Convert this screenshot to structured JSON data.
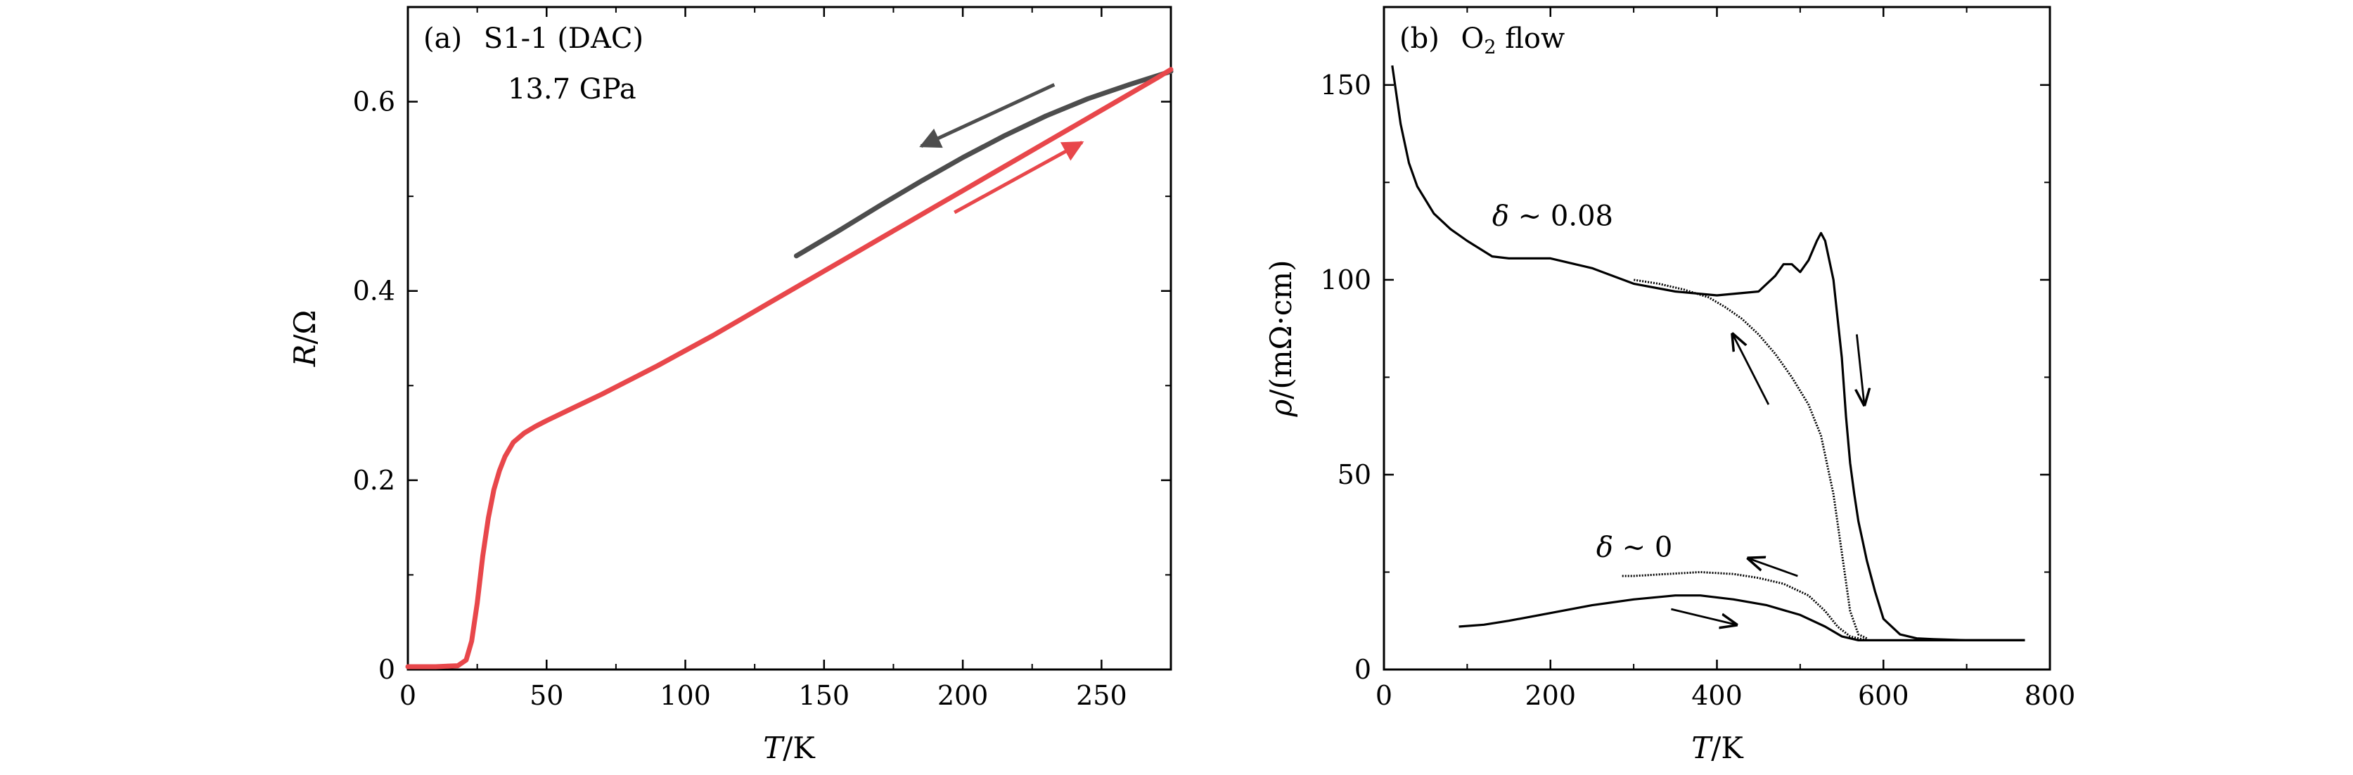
{
  "colors": {
    "cooling": "#4d4d4d",
    "warming": "#e8474b",
    "trace": "#000000",
    "frame": "#000000"
  },
  "chart_data": [
    {
      "panel": "a",
      "type": "line",
      "label_prefix": "(a)",
      "title": "S1-1 (DAC)",
      "subtitle": "13.7 GPa",
      "xlabel_var": "T",
      "xlabel_unit": "/K",
      "ylabel_var": "R",
      "ylabel_unit": "/Ω",
      "xlim": [
        0,
        275
      ],
      "ylim": [
        0,
        0.7
      ],
      "xticks": [
        0,
        50,
        100,
        150,
        200,
        250
      ],
      "yticks": [
        0,
        0.2,
        0.4,
        0.6
      ],
      "ytick_labels": [
        "0",
        "0.2",
        "0.4",
        "0.6"
      ],
      "series": [
        {
          "name": "cooling",
          "color": "#4d4d4d",
          "x": [
            275,
            260,
            245,
            230,
            215,
            200,
            185,
            170,
            155,
            140
          ],
          "y": [
            0.632,
            0.618,
            0.603,
            0.585,
            0.564,
            0.541,
            0.516,
            0.49,
            0.463,
            0.437
          ]
        },
        {
          "name": "warming",
          "color": "#e8474b",
          "x": [
            0,
            10,
            18,
            21,
            23,
            25,
            27,
            29,
            31,
            33,
            35,
            38,
            42,
            46,
            50,
            60,
            70,
            80,
            90,
            100,
            110,
            120,
            130,
            140,
            150,
            160,
            170,
            180,
            190,
            200,
            210,
            220,
            230,
            240,
            250,
            260,
            270,
            275
          ],
          "y": [
            0.003,
            0.003,
            0.004,
            0.01,
            0.03,
            0.07,
            0.12,
            0.16,
            0.19,
            0.21,
            0.225,
            0.24,
            0.25,
            0.257,
            0.263,
            0.277,
            0.291,
            0.306,
            0.321,
            0.337,
            0.353,
            0.37,
            0.387,
            0.404,
            0.421,
            0.438,
            0.455,
            0.472,
            0.489,
            0.506,
            0.523,
            0.54,
            0.557,
            0.574,
            0.591,
            0.608,
            0.625,
            0.634
          ]
        }
      ],
      "arrows": [
        {
          "series": "cooling",
          "direction": "decreasing T",
          "from": [
            233,
            0.618
          ],
          "to": [
            185,
            0.553
          ]
        },
        {
          "series": "warming",
          "direction": "increasing T",
          "from": [
            197,
            0.483
          ],
          "to": [
            243,
            0.557
          ]
        }
      ]
    },
    {
      "panel": "b",
      "type": "line",
      "label_prefix": "(b)",
      "title_main": "O",
      "title_sub": "2",
      "title_rest": " flow",
      "xlabel_var": "T",
      "xlabel_unit": "/K",
      "ylabel_var": "ρ",
      "ylabel_unit": "/(mΩ·cm)",
      "xlim": [
        0,
        800
      ],
      "ylim": [
        0,
        170
      ],
      "xticks": [
        0,
        200,
        400,
        600,
        800
      ],
      "yticks": [
        0,
        50,
        100,
        150
      ],
      "series": [
        {
          "name": "δ ~ 0.08 warming",
          "x": [
            10,
            20,
            30,
            40,
            60,
            80,
            100,
            130,
            150,
            200,
            250,
            300,
            350,
            400,
            450,
            470,
            480,
            490,
            500,
            510,
            520,
            525,
            530,
            540,
            550,
            555,
            560,
            565,
            570,
            575,
            580,
            590,
            600,
            620,
            640,
            660,
            700,
            740,
            770
          ],
          "y": [
            155,
            140,
            130,
            124,
            117,
            113,
            110,
            106,
            105.5,
            105.5,
            103,
            99,
            97,
            96,
            97,
            101,
            104,
            104,
            102,
            105,
            110,
            112,
            110,
            100,
            80,
            65,
            53,
            45,
            38,
            33,
            28,
            20,
            13,
            9,
            8,
            7.8,
            7.5,
            7.5,
            7.5
          ]
        },
        {
          "name": "δ ~ 0.08 cooling",
          "x": [
            580,
            570,
            560,
            550,
            540,
            525,
            510,
            490,
            470,
            450,
            430,
            410,
            390,
            360,
            330,
            300
          ],
          "y": [
            8,
            9,
            15,
            30,
            45,
            60,
            68,
            75,
            81,
            86,
            90,
            93,
            95.5,
            97.5,
            99,
            100
          ]
        },
        {
          "name": "δ ~ 0 warming",
          "x": [
            90,
            120,
            150,
            200,
            250,
            300,
            350,
            380,
            420,
            460,
            500,
            530,
            550,
            570,
            600,
            650,
            700,
            770
          ],
          "y": [
            11,
            11.5,
            12.5,
            14.5,
            16.5,
            18,
            19,
            19,
            18,
            16.5,
            14,
            11,
            8.5,
            7.5,
            7.5,
            7.5,
            7.5,
            7.5
          ]
        },
        {
          "name": "δ ~ 0 cooling",
          "x": [
            580,
            560,
            545,
            530,
            510,
            480,
            450,
            420,
            380,
            340,
            300,
            285
          ],
          "y": [
            7.5,
            8.5,
            11,
            15,
            19,
            22,
            23.5,
            24.5,
            25,
            24.5,
            24,
            24
          ]
        }
      ],
      "annotations": [
        {
          "id": "label_d008",
          "var": "δ",
          "text": " ∼ 0.08",
          "x": 130,
          "y": 114
        },
        {
          "id": "label_d0",
          "var": "δ",
          "text": " ∼ 0",
          "x": 255,
          "y": 29
        }
      ],
      "arrows": [
        {
          "from": [
            462,
            68
          ],
          "to": [
            419,
            86
          ]
        },
        {
          "from": [
            497,
            24
          ],
          "to": [
            438,
            28.5
          ]
        },
        {
          "from": [
            345,
            15.5
          ],
          "to": [
            423,
            11.5
          ]
        },
        {
          "from": [
            568,
            86
          ],
          "to": [
            577,
            68
          ]
        }
      ]
    }
  ]
}
